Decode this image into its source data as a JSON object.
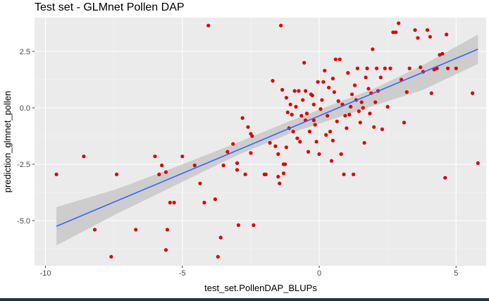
{
  "chart_data": {
    "type": "scatter",
    "title": "Test set - GLMnet Pollen DAP",
    "xlabel": "test_set.PollenDAP_BLUPs",
    "ylabel": "prediction_glmnet_pollen",
    "xlim": [
      -10.4,
      6.1
    ],
    "ylim": [
      -7.0,
      4.0
    ],
    "xticks": [
      -10,
      -5,
      0,
      5
    ],
    "xtick_labels": [
      "-10",
      "-5",
      "0",
      "5"
    ],
    "yticks": [
      -5.0,
      -2.5,
      0.0,
      2.5
    ],
    "ytick_labels": [
      "-5.0",
      "-2.5",
      "0.0",
      "2.5"
    ],
    "grid": true,
    "point_color": "#e00000",
    "fit_color": "#3366ff",
    "ribbon_color": "#c8c8c8",
    "panel_color": "#ebebeb",
    "fit_line": {
      "x0": -9.6,
      "y0": -5.25,
      "x1": 5.8,
      "y1": 2.6
    },
    "confidence_band": {
      "x": [
        -9.6,
        -7.4,
        -5.2,
        -3.0,
        -1.0,
        0.5,
        2.0,
        3.8,
        5.8
      ],
      "lower": [
        -6.1,
        -4.7,
        -3.4,
        -2.1,
        -1.1,
        -0.5,
        0.1,
        0.8,
        1.95
      ],
      "upper": [
        -4.4,
        -3.6,
        -2.6,
        -1.55,
        -0.55,
        0.15,
        0.85,
        1.9,
        3.25
      ]
    },
    "points": [
      [
        -9.6,
        -2.95
      ],
      [
        -8.6,
        -2.15
      ],
      [
        -8.2,
        -5.4
      ],
      [
        -7.6,
        -6.6
      ],
      [
        -7.4,
        -2.95
      ],
      [
        -6.7,
        -5.4
      ],
      [
        -6.0,
        -2.15
      ],
      [
        -5.85,
        -2.95
      ],
      [
        -5.75,
        -2.55
      ],
      [
        -5.6,
        -2.85
      ],
      [
        -5.6,
        -6.3
      ],
      [
        -5.55,
        -5.4
      ],
      [
        -5.45,
        -4.2
      ],
      [
        -5.3,
        -4.2
      ],
      [
        -5.0,
        -2.15
      ],
      [
        -4.55,
        -2.55
      ],
      [
        -4.35,
        -3.35
      ],
      [
        -4.2,
        -4.2
      ],
      [
        -4.05,
        3.65
      ],
      [
        -3.8,
        -4.05
      ],
      [
        -3.7,
        -6.6
      ],
      [
        -3.6,
        -5.75
      ],
      [
        -3.5,
        -2.55
      ],
      [
        -3.35,
        -1.95
      ],
      [
        -3.15,
        -1.6
      ],
      [
        -3.0,
        -2.45
      ],
      [
        -3.0,
        -2.75
      ],
      [
        -2.95,
        -5.2
      ],
      [
        -2.8,
        -0.45
      ],
      [
        -2.7,
        -2.95
      ],
      [
        -2.6,
        -0.85
      ],
      [
        -2.5,
        -2.0
      ],
      [
        -2.5,
        -1.15
      ],
      [
        -2.45,
        -1.25
      ],
      [
        -2.4,
        -5.2
      ],
      [
        -2.0,
        -2.95
      ],
      [
        -1.95,
        -2.95
      ],
      [
        -1.8,
        -1.55
      ],
      [
        -1.7,
        1.2
      ],
      [
        -1.6,
        -1.7
      ],
      [
        -1.5,
        -2.05
      ],
      [
        -1.5,
        -3.05
      ],
      [
        -1.45,
        -3.35
      ],
      [
        -1.4,
        3.65
      ],
      [
        -1.35,
        0.8
      ],
      [
        -1.3,
        -2.9
      ],
      [
        -1.25,
        -2.5
      ],
      [
        -1.2,
        -1.75
      ],
      [
        -1.2,
        0.45
      ],
      [
        -1.15,
        -0.2
      ],
      [
        -1.1,
        -0.9
      ],
      [
        -1.05,
        0.15
      ],
      [
        -1.0,
        -0.3
      ],
      [
        -0.95,
        -1.05
      ],
      [
        -0.9,
        0.75
      ],
      [
        -0.85,
        0.05
      ],
      [
        -0.8,
        -1.35
      ],
      [
        -0.75,
        0.75
      ],
      [
        -0.7,
        -1.5
      ],
      [
        -0.65,
        -0.35
      ],
      [
        -0.6,
        0.35
      ],
      [
        -0.55,
        2.0
      ],
      [
        -0.5,
        -0.55
      ],
      [
        -0.5,
        0.75
      ],
      [
        -0.45,
        -0.25
      ],
      [
        -0.4,
        -1.95
      ],
      [
        -0.35,
        -1.05
      ],
      [
        -0.3,
        0.6
      ],
      [
        -0.25,
        0.55
      ],
      [
        -0.2,
        -0.55
      ],
      [
        -0.2,
        0.15
      ],
      [
        -0.15,
        -0.75
      ],
      [
        -0.1,
        -1.5
      ],
      [
        -0.05,
        1.15
      ],
      [
        0.0,
        -2.05
      ],
      [
        0.05,
        -0.05
      ],
      [
        0.1,
        0.35
      ],
      [
        0.15,
        1.15
      ],
      [
        0.2,
        1.65
      ],
      [
        0.25,
        -1.2
      ],
      [
        0.3,
        -0.35
      ],
      [
        0.35,
        0.9
      ],
      [
        0.4,
        -1.05
      ],
      [
        0.45,
        -2.35
      ],
      [
        0.5,
        1.3
      ],
      [
        0.5,
        -1.45
      ],
      [
        0.55,
        0.7
      ],
      [
        0.6,
        2.15
      ],
      [
        0.65,
        -0.6
      ],
      [
        0.7,
        0.3
      ],
      [
        0.75,
        2.15
      ],
      [
        0.8,
        -2.05
      ],
      [
        0.85,
        0.15
      ],
      [
        0.9,
        -2.95
      ],
      [
        0.95,
        -0.35
      ],
      [
        1.0,
        -0.9
      ],
      [
        1.05,
        1.55
      ],
      [
        1.1,
        -0.3
      ],
      [
        1.15,
        0.05
      ],
      [
        1.2,
        0.6
      ],
      [
        1.25,
        -2.95
      ],
      [
        1.3,
        1.0
      ],
      [
        1.35,
        0.35
      ],
      [
        1.4,
        1.75
      ],
      [
        1.45,
        -0.15
      ],
      [
        1.5,
        -0.65
      ],
      [
        1.55,
        0.25
      ],
      [
        1.6,
        0.0
      ],
      [
        1.65,
        -1.55
      ],
      [
        1.7,
        1.35
      ],
      [
        1.75,
        1.75
      ],
      [
        1.8,
        0.85
      ],
      [
        1.85,
        -0.25
      ],
      [
        1.9,
        0.65
      ],
      [
        1.95,
        2.6
      ],
      [
        2.0,
        -0.85
      ],
      [
        2.05,
        0.25
      ],
      [
        2.1,
        1.75
      ],
      [
        2.15,
        0.75
      ],
      [
        2.25,
        1.35
      ],
      [
        2.3,
        -0.95
      ],
      [
        2.4,
        1.75
      ],
      [
        2.5,
        0.05
      ],
      [
        2.6,
        1.75
      ],
      [
        2.7,
        3.35
      ],
      [
        2.8,
        3.35
      ],
      [
        2.9,
        3.75
      ],
      [
        3.0,
        1.25
      ],
      [
        3.1,
        -0.65
      ],
      [
        3.2,
        0.7
      ],
      [
        3.3,
        1.75
      ],
      [
        3.5,
        3.45
      ],
      [
        3.6,
        3.1
      ],
      [
        3.7,
        1.8
      ],
      [
        3.8,
        1.6
      ],
      [
        3.95,
        3.45
      ],
      [
        4.05,
        3.15
      ],
      [
        4.1,
        0.65
      ],
      [
        4.2,
        1.7
      ],
      [
        4.3,
        1.75
      ],
      [
        4.4,
        2.35
      ],
      [
        4.5,
        2.4
      ],
      [
        4.6,
        -3.1
      ],
      [
        4.65,
        3.25
      ],
      [
        4.7,
        1.75
      ],
      [
        5.0,
        1.75
      ],
      [
        5.6,
        0.65
      ],
      [
        5.8,
        -2.45
      ],
      [
        -1.3,
        -2.5
      ]
    ]
  }
}
